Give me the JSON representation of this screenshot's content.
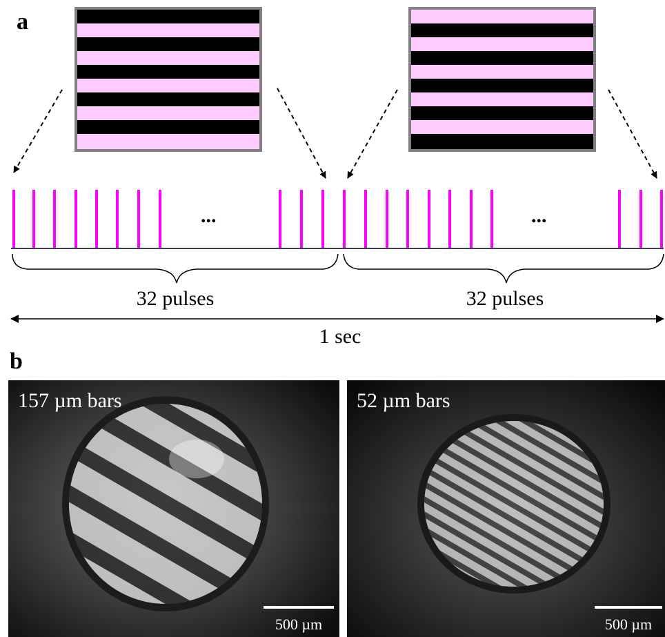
{
  "panel_a": {
    "letter": "a",
    "ellipsis_1": "...",
    "ellipsis_2": "...",
    "group_1_label": "32 pulses",
    "group_2_label": "32 pulses",
    "duration_label": "1 sec",
    "pulse_color": "#ff00ff",
    "stripe_pink": "#ffccff",
    "stripe_black": "#000000",
    "pattern_border": "#808080"
  },
  "panel_b": {
    "letter": "b",
    "image_1_label": "157 µm bars",
    "image_2_label": "52 µm bars",
    "scalebar_1_label": "500 µm",
    "scalebar_2_label": "500 µm"
  }
}
